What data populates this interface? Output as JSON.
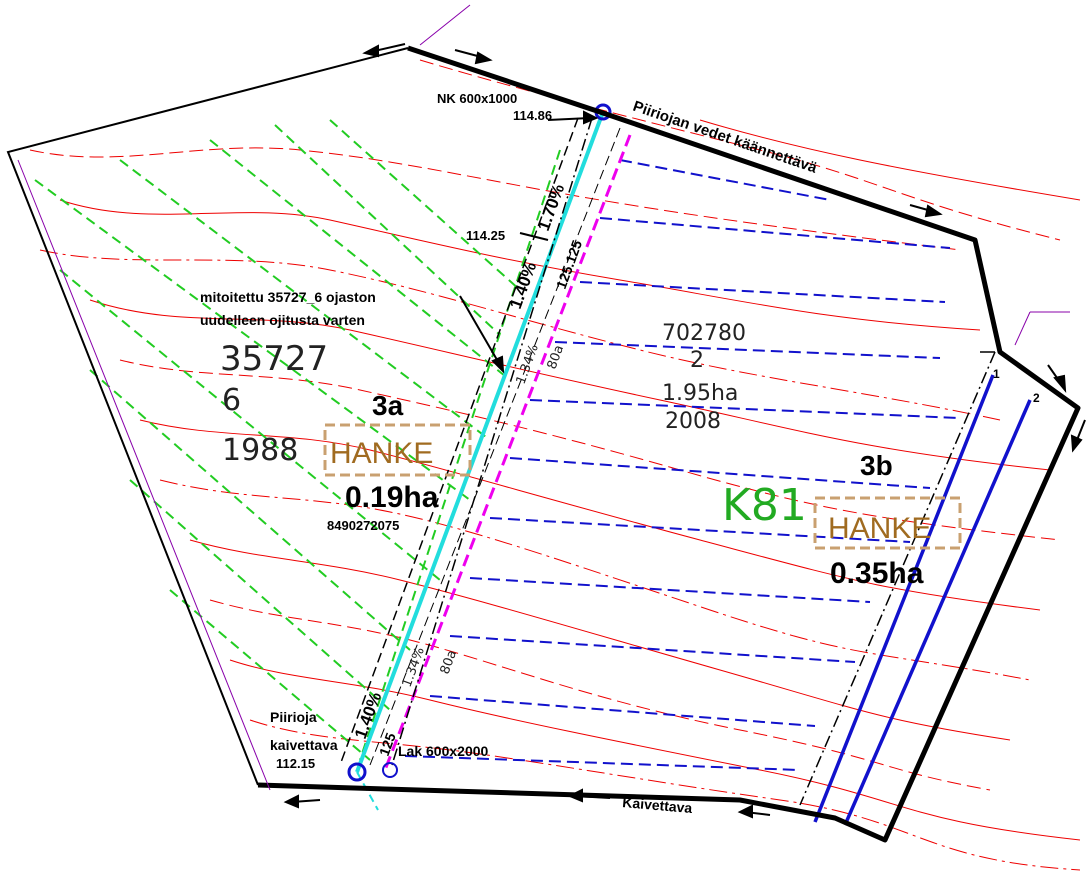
{
  "texts": [
    "NK 600x1000",
    "114.86",
    "Piiriojan vedet käännettävä",
    "114.25",
    "1.70%",
    "1.40%",
    "125.125",
    "mitoitettu 35727_6 ojaston",
    "uudelleen ojitusta varten",
    "35727",
    "6",
    "1988",
    "3a",
    "HANKE",
    "0.19ha",
    "8490272075",
    "1.34%",
    "80a",
    "702780",
    "2",
    "1.95ha",
    "2008",
    "3b",
    "K81",
    "HANKE",
    "0.35ha",
    "1",
    "2",
    "Piirioja",
    "kaivettava",
    "112.15",
    "125",
    "1.40%",
    "Lak 600x2000",
    "1.34%",
    "80a",
    "Kaivettava"
  ]
}
